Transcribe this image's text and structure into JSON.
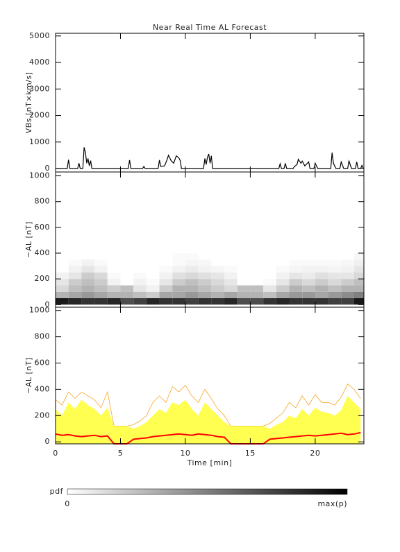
{
  "chart_data": [
    {
      "type": "line",
      "title": "Near Real Time AL Forecast",
      "ylabel": "VBs [nT×km/s]",
      "color": "#000000",
      "xlim": [
        0,
        23.75
      ],
      "xticks": [
        0,
        5,
        10,
        15,
        20
      ],
      "xtick_labels": false,
      "ylim": [
        -130,
        5100
      ],
      "yticks": [
        0,
        1000,
        2000,
        3000,
        4000,
        5000
      ],
      "x": [
        0,
        0.9,
        1.0,
        1.1,
        1.7,
        1.8,
        1.9,
        2.1,
        2.2,
        2.3,
        2.4,
        2.5,
        2.6,
        2.7,
        2.8,
        5.6,
        5.7,
        5.8,
        6.7,
        6.8,
        6.9,
        7.9,
        8.0,
        8.1,
        8.4,
        8.6,
        8.7,
        8.9,
        9.1,
        9.3,
        9.5,
        9.6,
        9.7,
        11.4,
        11.5,
        11.6,
        11.7,
        11.8,
        11.9,
        12.0,
        12.1,
        17.2,
        17.3,
        17.4,
        17.6,
        17.7,
        17.8,
        18.3,
        18.4,
        18.6,
        18.7,
        18.9,
        19.0,
        19.2,
        19.5,
        19.6,
        19.9,
        20.0,
        20.2,
        21.2,
        21.3,
        21.4,
        21.6,
        21.9,
        22.0,
        22.2,
        22.5,
        22.6,
        22.8,
        23.1,
        23.2,
        23.3,
        23.5,
        23.6,
        23.7
      ],
      "values": [
        0,
        0,
        330,
        0,
        0,
        200,
        0,
        0,
        800,
        600,
        200,
        380,
        100,
        300,
        0,
        0,
        320,
        0,
        0,
        80,
        0,
        0,
        320,
        80,
        100,
        350,
        500,
        300,
        200,
        480,
        400,
        300,
        0,
        0,
        380,
        150,
        420,
        550,
        200,
        480,
        0,
        0,
        180,
        0,
        0,
        200,
        0,
        0,
        80,
        150,
        350,
        200,
        280,
        100,
        250,
        0,
        0,
        200,
        0,
        0,
        600,
        200,
        0,
        0,
        250,
        0,
        0,
        280,
        0,
        0,
        250,
        0,
        0,
        120,
        0
      ]
    },
    {
      "type": "heatmap",
      "ylabel": "−AL [nT]",
      "xlim": [
        0,
        23.75
      ],
      "xticks": [
        0,
        5,
        10,
        15,
        20
      ],
      "xtick_labels": false,
      "ylim": [
        -20,
        1030
      ],
      "yticks": [
        0,
        200,
        400,
        600,
        800,
        1000
      ],
      "xbins": [
        0,
        1,
        2,
        3,
        4,
        5,
        6,
        7,
        8,
        9,
        10,
        11,
        12,
        13,
        14,
        15,
        16,
        17,
        18,
        19,
        20,
        21,
        22,
        23,
        23.75
      ],
      "ybins": [
        0,
        50,
        100,
        150,
        200,
        250,
        300,
        350,
        400
      ],
      "values": [
        [
          0.9,
          0.85,
          0.8,
          0.8,
          0.85,
          0.7,
          0.75,
          0.85,
          0.8,
          0.8,
          0.75,
          0.8,
          0.8,
          0.85,
          0.7,
          0.7,
          0.8,
          0.85,
          0.8,
          0.8,
          0.8,
          0.75,
          0.75,
          0.9
        ],
        [
          0.3,
          0.35,
          0.4,
          0.35,
          0.3,
          0.3,
          0.25,
          0.2,
          0.35,
          0.35,
          0.4,
          0.35,
          0.3,
          0.35,
          0.3,
          0.3,
          0.25,
          0.35,
          0.4,
          0.4,
          0.35,
          0.4,
          0.45,
          0.5
        ],
        [
          0.15,
          0.25,
          0.3,
          0.25,
          0.2,
          0.25,
          0.1,
          0.05,
          0.2,
          0.3,
          0.3,
          0.25,
          0.2,
          0.15,
          0.25,
          0.25,
          0.1,
          0.2,
          0.3,
          0.25,
          0.3,
          0.25,
          0.3,
          0.3
        ],
        [
          0.1,
          0.2,
          0.25,
          0.2,
          0.05,
          0,
          0.05,
          0.02,
          0.1,
          0.2,
          0.25,
          0.2,
          0.15,
          0.1,
          0,
          0,
          0.02,
          0.1,
          0.2,
          0.15,
          0.2,
          0.15,
          0.2,
          0.25
        ],
        [
          0.05,
          0.1,
          0.2,
          0.15,
          0.02,
          0,
          0.02,
          0,
          0.05,
          0.12,
          0.15,
          0.12,
          0.1,
          0.05,
          0,
          0,
          0,
          0.05,
          0.1,
          0.08,
          0.12,
          0.1,
          0.1,
          0.15
        ],
        [
          0,
          0.05,
          0.1,
          0.05,
          0,
          0,
          0,
          0,
          0.02,
          0.05,
          0.08,
          0.05,
          0.04,
          0.02,
          0,
          0,
          0,
          0.02,
          0.04,
          0.05,
          0.05,
          0.04,
          0.05,
          0.1
        ],
        [
          0,
          0.02,
          0.05,
          0.02,
          0,
          0,
          0,
          0,
          0,
          0.02,
          0.04,
          0.03,
          0,
          0,
          0,
          0,
          0,
          0,
          0.02,
          0.02,
          0.02,
          0.02,
          0.03,
          0.06
        ],
        [
          0,
          0,
          0,
          0,
          0,
          0,
          0,
          0,
          0,
          0.02,
          0.02,
          0,
          0,
          0,
          0,
          0,
          0,
          0,
          0,
          0,
          0,
          0,
          0,
          0.03
        ]
      ],
      "colorbar": {
        "label": "pdf",
        "min_label": "0",
        "max_label": "max(p)"
      }
    },
    {
      "type": "line",
      "ylabel": "−AL [nT]",
      "xlabel": "Time [min]",
      "xlim": [
        0,
        23.75
      ],
      "xticks": [
        0,
        5,
        10,
        15,
        20
      ],
      "xtick_labels": true,
      "ylim": [
        -15,
        1025
      ],
      "yticks": [
        0,
        200,
        400,
        600,
        800,
        1000
      ],
      "x": [
        0,
        0.5,
        1,
        1.5,
        2,
        2.5,
        3,
        3.5,
        4,
        4.5,
        5,
        5.5,
        6,
        6.5,
        7,
        7.5,
        8,
        8.5,
        9,
        9.5,
        10,
        10.5,
        11,
        11.5,
        12,
        12.5,
        13,
        13.5,
        14,
        14.5,
        15,
        15.5,
        16,
        16.5,
        17,
        17.5,
        18,
        18.5,
        19,
        19.5,
        20,
        20.5,
        21,
        21.5,
        22,
        22.5,
        23,
        23.5
      ],
      "series": [
        {
          "color": "#f5a623",
          "fill": false,
          "values": [
            320,
            280,
            380,
            330,
            380,
            350,
            320,
            260,
            380,
            120,
            120,
            120,
            130,
            160,
            200,
            300,
            350,
            300,
            420,
            380,
            430,
            350,
            300,
            400,
            330,
            250,
            200,
            120,
            120,
            120,
            120,
            120,
            120,
            140,
            180,
            220,
            300,
            260,
            350,
            280,
            360,
            300,
            300,
            280,
            340,
            440,
            400,
            330
          ]
        },
        {
          "color": "#ffff33",
          "fill": true,
          "values": [
            250,
            200,
            300,
            250,
            320,
            280,
            250,
            200,
            260,
            120,
            120,
            120,
            100,
            120,
            150,
            200,
            250,
            220,
            300,
            280,
            320,
            250,
            200,
            300,
            250,
            200,
            150,
            120,
            120,
            120,
            120,
            120,
            120,
            100,
            130,
            150,
            200,
            180,
            250,
            200,
            260,
            230,
            220,
            200,
            240,
            350,
            300,
            250
          ]
        },
        {
          "color": "#ff0000",
          "fill": false,
          "values": [
            60,
            50,
            55,
            45,
            40,
            45,
            50,
            40,
            45,
            -15,
            -15,
            -15,
            20,
            25,
            30,
            40,
            45,
            50,
            55,
            60,
            55,
            50,
            60,
            55,
            50,
            40,
            35,
            -15,
            -15,
            -15,
            -15,
            -15,
            -15,
            20,
            25,
            30,
            35,
            40,
            45,
            50,
            45,
            50,
            55,
            60,
            65,
            55,
            60,
            70
          ]
        }
      ]
    }
  ]
}
